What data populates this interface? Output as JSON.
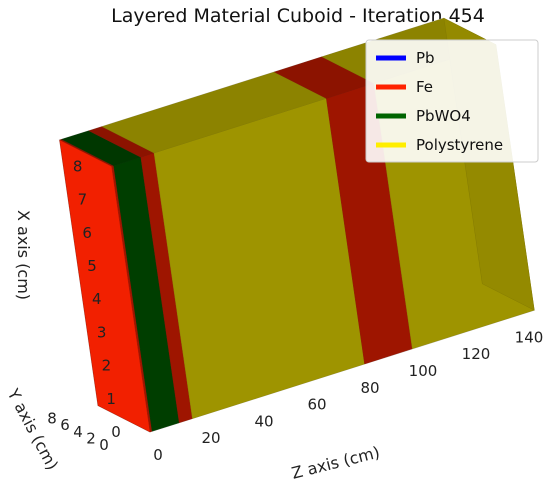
{
  "chart_data": {
    "type": "3d-layered-cuboid",
    "title": "Layered Material Cuboid - Iteration 454",
    "xlabel": "X axis (cm)",
    "ylabel": "Y axis (cm)",
    "zlabel": "Z axis (cm)",
    "x_ticks": [
      "0",
      "1",
      "2",
      "3",
      "4",
      "5",
      "6",
      "7",
      "8"
    ],
    "y_ticks": [
      "0",
      "2",
      "4",
      "6",
      "8"
    ],
    "z_ticks": [
      "0",
      "20",
      "40",
      "60",
      "80",
      "100",
      "120",
      "140"
    ],
    "xlim": [
      0,
      8
    ],
    "ylim": [
      0,
      8
    ],
    "zlim": [
      0,
      145
    ],
    "grid": true,
    "legend_position": "top-right",
    "legend": [
      {
        "name": "Pb",
        "color": "#0000ff"
      },
      {
        "name": "Fe",
        "color": "#ff2200"
      },
      {
        "name": "PbWO4",
        "color": "#006400"
      },
      {
        "name": "Polystyrene",
        "color": "#ffee00"
      }
    ],
    "layers": [
      {
        "material": "Fe",
        "z_start": 0,
        "z_end": 0.8,
        "color": "#ff2200"
      },
      {
        "material": "PbWO4",
        "z_start": 0.8,
        "z_end": 11,
        "color": "#006400"
      },
      {
        "material": "Fe",
        "z_start": 11,
        "z_end": 16,
        "color": "#ff2200"
      },
      {
        "material": "Polystyrene",
        "z_start": 16,
        "z_end": 81,
        "color": "#ffee00"
      },
      {
        "material": "Fe",
        "z_start": 81,
        "z_end": 99,
        "color": "#ff2200"
      },
      {
        "material": "Polystyrene",
        "z_start": 99,
        "z_end": 145,
        "color": "#ffee00"
      }
    ]
  }
}
